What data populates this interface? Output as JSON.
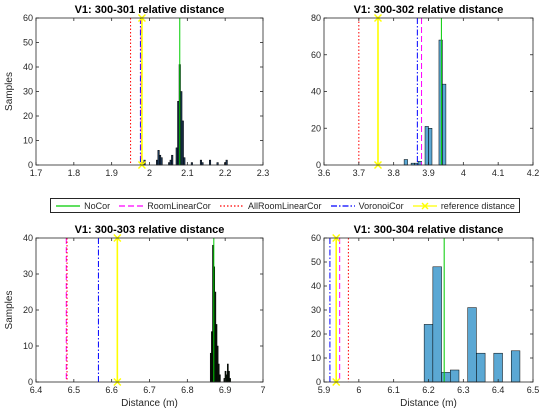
{
  "legend": [
    {
      "label": "NoCor",
      "color": "#00cc00",
      "dash": "solid"
    },
    {
      "label": "RoomLinearCor",
      "color": "#ff00ff",
      "dash": "dashed"
    },
    {
      "label": "AllRoomLinearCor",
      "color": "#ff0000",
      "dash": "dotted"
    },
    {
      "label": "VoronoiCor",
      "color": "#0000ff",
      "dash": "dashdot"
    },
    {
      "label": "reference distance",
      "color": "#ffff00",
      "dash": "solid-marker"
    }
  ],
  "chart_data": [
    {
      "type": "bar",
      "title": "V1:  300-301 relative distance",
      "xlabel": "",
      "ylabel": "Samples",
      "xlim": [
        1.7,
        2.3
      ],
      "ylim": [
        0,
        60
      ],
      "xticks": [
        "1.7",
        "1.8",
        "1.9",
        "2",
        "2.1",
        "2.2",
        "2.3"
      ],
      "yticks": [
        "0",
        "10",
        "20",
        "30",
        "40",
        "50",
        "60"
      ],
      "bar_color": "#1f3a5a",
      "bar_width": 0.004,
      "bars": [
        [
          1.983,
          1
        ],
        [
          1.987,
          2
        ],
        [
          2.02,
          2
        ],
        [
          2.024,
          6
        ],
        [
          2.028,
          4
        ],
        [
          2.032,
          3
        ],
        [
          2.052,
          1
        ],
        [
          2.056,
          2
        ],
        [
          2.06,
          4
        ],
        [
          2.072,
          7
        ],
        [
          2.076,
          26
        ],
        [
          2.08,
          41
        ],
        [
          2.084,
          30
        ],
        [
          2.088,
          18
        ],
        [
          2.092,
          3
        ],
        [
          2.112,
          1
        ],
        [
          2.136,
          2
        ],
        [
          2.14,
          1
        ],
        [
          2.16,
          2
        ],
        [
          2.18,
          1
        ],
        [
          2.2,
          1
        ],
        [
          2.204,
          2
        ]
      ],
      "lines": [
        {
          "series": "NoCor",
          "x": 2.08
        },
        {
          "series": "AllRoomLinearCor",
          "x": 1.95
        },
        {
          "series": "VoronoiCor",
          "x": 1.976
        },
        {
          "series": "RoomLinearCor",
          "x": 1.978
        },
        {
          "series": "reference distance",
          "x": 1.98
        }
      ]
    },
    {
      "type": "bar",
      "title": "V1:  300-302 relative distance",
      "xlabel": "",
      "ylabel": "",
      "xlim": [
        3.6,
        4.2
      ],
      "ylim": [
        0,
        80
      ],
      "xticks": [
        "3.6",
        "3.7",
        "3.8",
        "3.9",
        "4",
        "4.1",
        "4.2"
      ],
      "yticks": [
        "0",
        "20",
        "40",
        "60",
        "80"
      ],
      "bar_color": "#5ba8d4",
      "bar_width": 0.01,
      "bars": [
        [
          3.835,
          3
        ],
        [
          3.855,
          1
        ],
        [
          3.865,
          1
        ],
        [
          3.875,
          2
        ],
        [
          3.895,
          21
        ],
        [
          3.905,
          20
        ],
        [
          3.935,
          68
        ],
        [
          3.945,
          44
        ]
      ],
      "lines": [
        {
          "series": "NoCor",
          "x": 3.937
        },
        {
          "series": "RoomLinearCor",
          "x": 3.88
        },
        {
          "series": "AllRoomLinearCor",
          "x": 3.7
        },
        {
          "series": "VoronoiCor",
          "x": 3.868
        },
        {
          "series": "reference distance",
          "x": 3.755
        }
      ]
    },
    {
      "type": "bar",
      "title": "V1:  300-303 relative distance",
      "xlabel": "Distance (m)",
      "ylabel": "Samples",
      "xlim": [
        6.4,
        7.0
      ],
      "ylim": [
        0,
        40
      ],
      "xticks": [
        "6.4",
        "6.5",
        "6.6",
        "6.7",
        "6.8",
        "6.9",
        "7"
      ],
      "yticks": [
        "0",
        "10",
        "20",
        "30",
        "40"
      ],
      "bar_color": "#0a1a0a",
      "bar_width": 0.003,
      "bars": [
        [
          6.862,
          8
        ],
        [
          6.865,
          14
        ],
        [
          6.868,
          38
        ],
        [
          6.871,
          32
        ],
        [
          6.874,
          25
        ],
        [
          6.877,
          16
        ],
        [
          6.88,
          10
        ],
        [
          6.883,
          5
        ],
        [
          6.886,
          2
        ],
        [
          6.898,
          1
        ],
        [
          6.901,
          3
        ],
        [
          6.904,
          2
        ],
        [
          6.907,
          5
        ],
        [
          6.91,
          3
        ],
        [
          6.913,
          1
        ]
      ],
      "lines": [
        {
          "series": "NoCor",
          "x": 6.87
        },
        {
          "series": "RoomLinearCor",
          "x": 6.48
        },
        {
          "series": "AllRoomLinearCor",
          "x": 6.482
        },
        {
          "series": "VoronoiCor",
          "x": 6.565
        },
        {
          "series": "reference distance",
          "x": 6.615
        }
      ]
    },
    {
      "type": "bar",
      "title": "V1:  300-304 relative distance",
      "xlabel": "Distance (m)",
      "ylabel": "",
      "xlim": [
        5.9,
        6.5
      ],
      "ylim": [
        0,
        60
      ],
      "xticks": [
        "5.9",
        "6",
        "6.1",
        "6.2",
        "6.3",
        "6.4",
        "6.5"
      ],
      "yticks": [
        "0",
        "10",
        "20",
        "30",
        "40",
        "50",
        "60"
      ],
      "bar_color": "#5ba8d4",
      "bar_width": 0.025,
      "bars": [
        [
          6.2,
          24
        ],
        [
          6.225,
          48
        ],
        [
          6.25,
          4
        ],
        [
          6.275,
          5
        ],
        [
          6.3,
          0
        ],
        [
          6.325,
          31
        ],
        [
          6.35,
          12
        ],
        [
          6.375,
          0
        ],
        [
          6.4,
          12
        ],
        [
          6.45,
          13
        ]
      ],
      "lines": [
        {
          "series": "NoCor",
          "x": 6.245
        },
        {
          "series": "RoomLinearCor",
          "x": 5.945
        },
        {
          "series": "AllRoomLinearCor",
          "x": 5.97
        },
        {
          "series": "VoronoiCor",
          "x": 5.917
        },
        {
          "series": "reference distance",
          "x": 5.935
        }
      ]
    }
  ]
}
